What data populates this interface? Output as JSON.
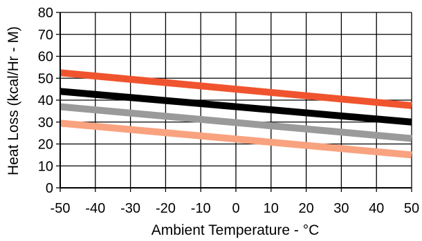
{
  "chart_data": {
    "type": "line",
    "xlabel": "Ambient Temperature - °C",
    "ylabel": "Heat Loss (kcal/Hr - M)",
    "xlim": [
      -50,
      50
    ],
    "ylim": [
      0,
      80
    ],
    "x_ticks": [
      -50,
      -40,
      -30,
      -20,
      -10,
      0,
      10,
      20,
      30,
      40,
      50
    ],
    "y_ticks": [
      0,
      10,
      20,
      30,
      40,
      50,
      60,
      70,
      80
    ],
    "grid": true,
    "series": [
      {
        "x": [
          -50,
          50
        ],
        "y": [
          52.5,
          37.5
        ],
        "color": "#f0542e"
      },
      {
        "x": [
          -50,
          50
        ],
        "y": [
          44,
          30
        ],
        "color": "#000000"
      },
      {
        "x": [
          -50,
          50
        ],
        "y": [
          37,
          22.5
        ],
        "color": "#9a9a9a"
      },
      {
        "x": [
          -50,
          50
        ],
        "y": [
          29.5,
          15
        ],
        "color": "#f9a27f"
      }
    ]
  }
}
